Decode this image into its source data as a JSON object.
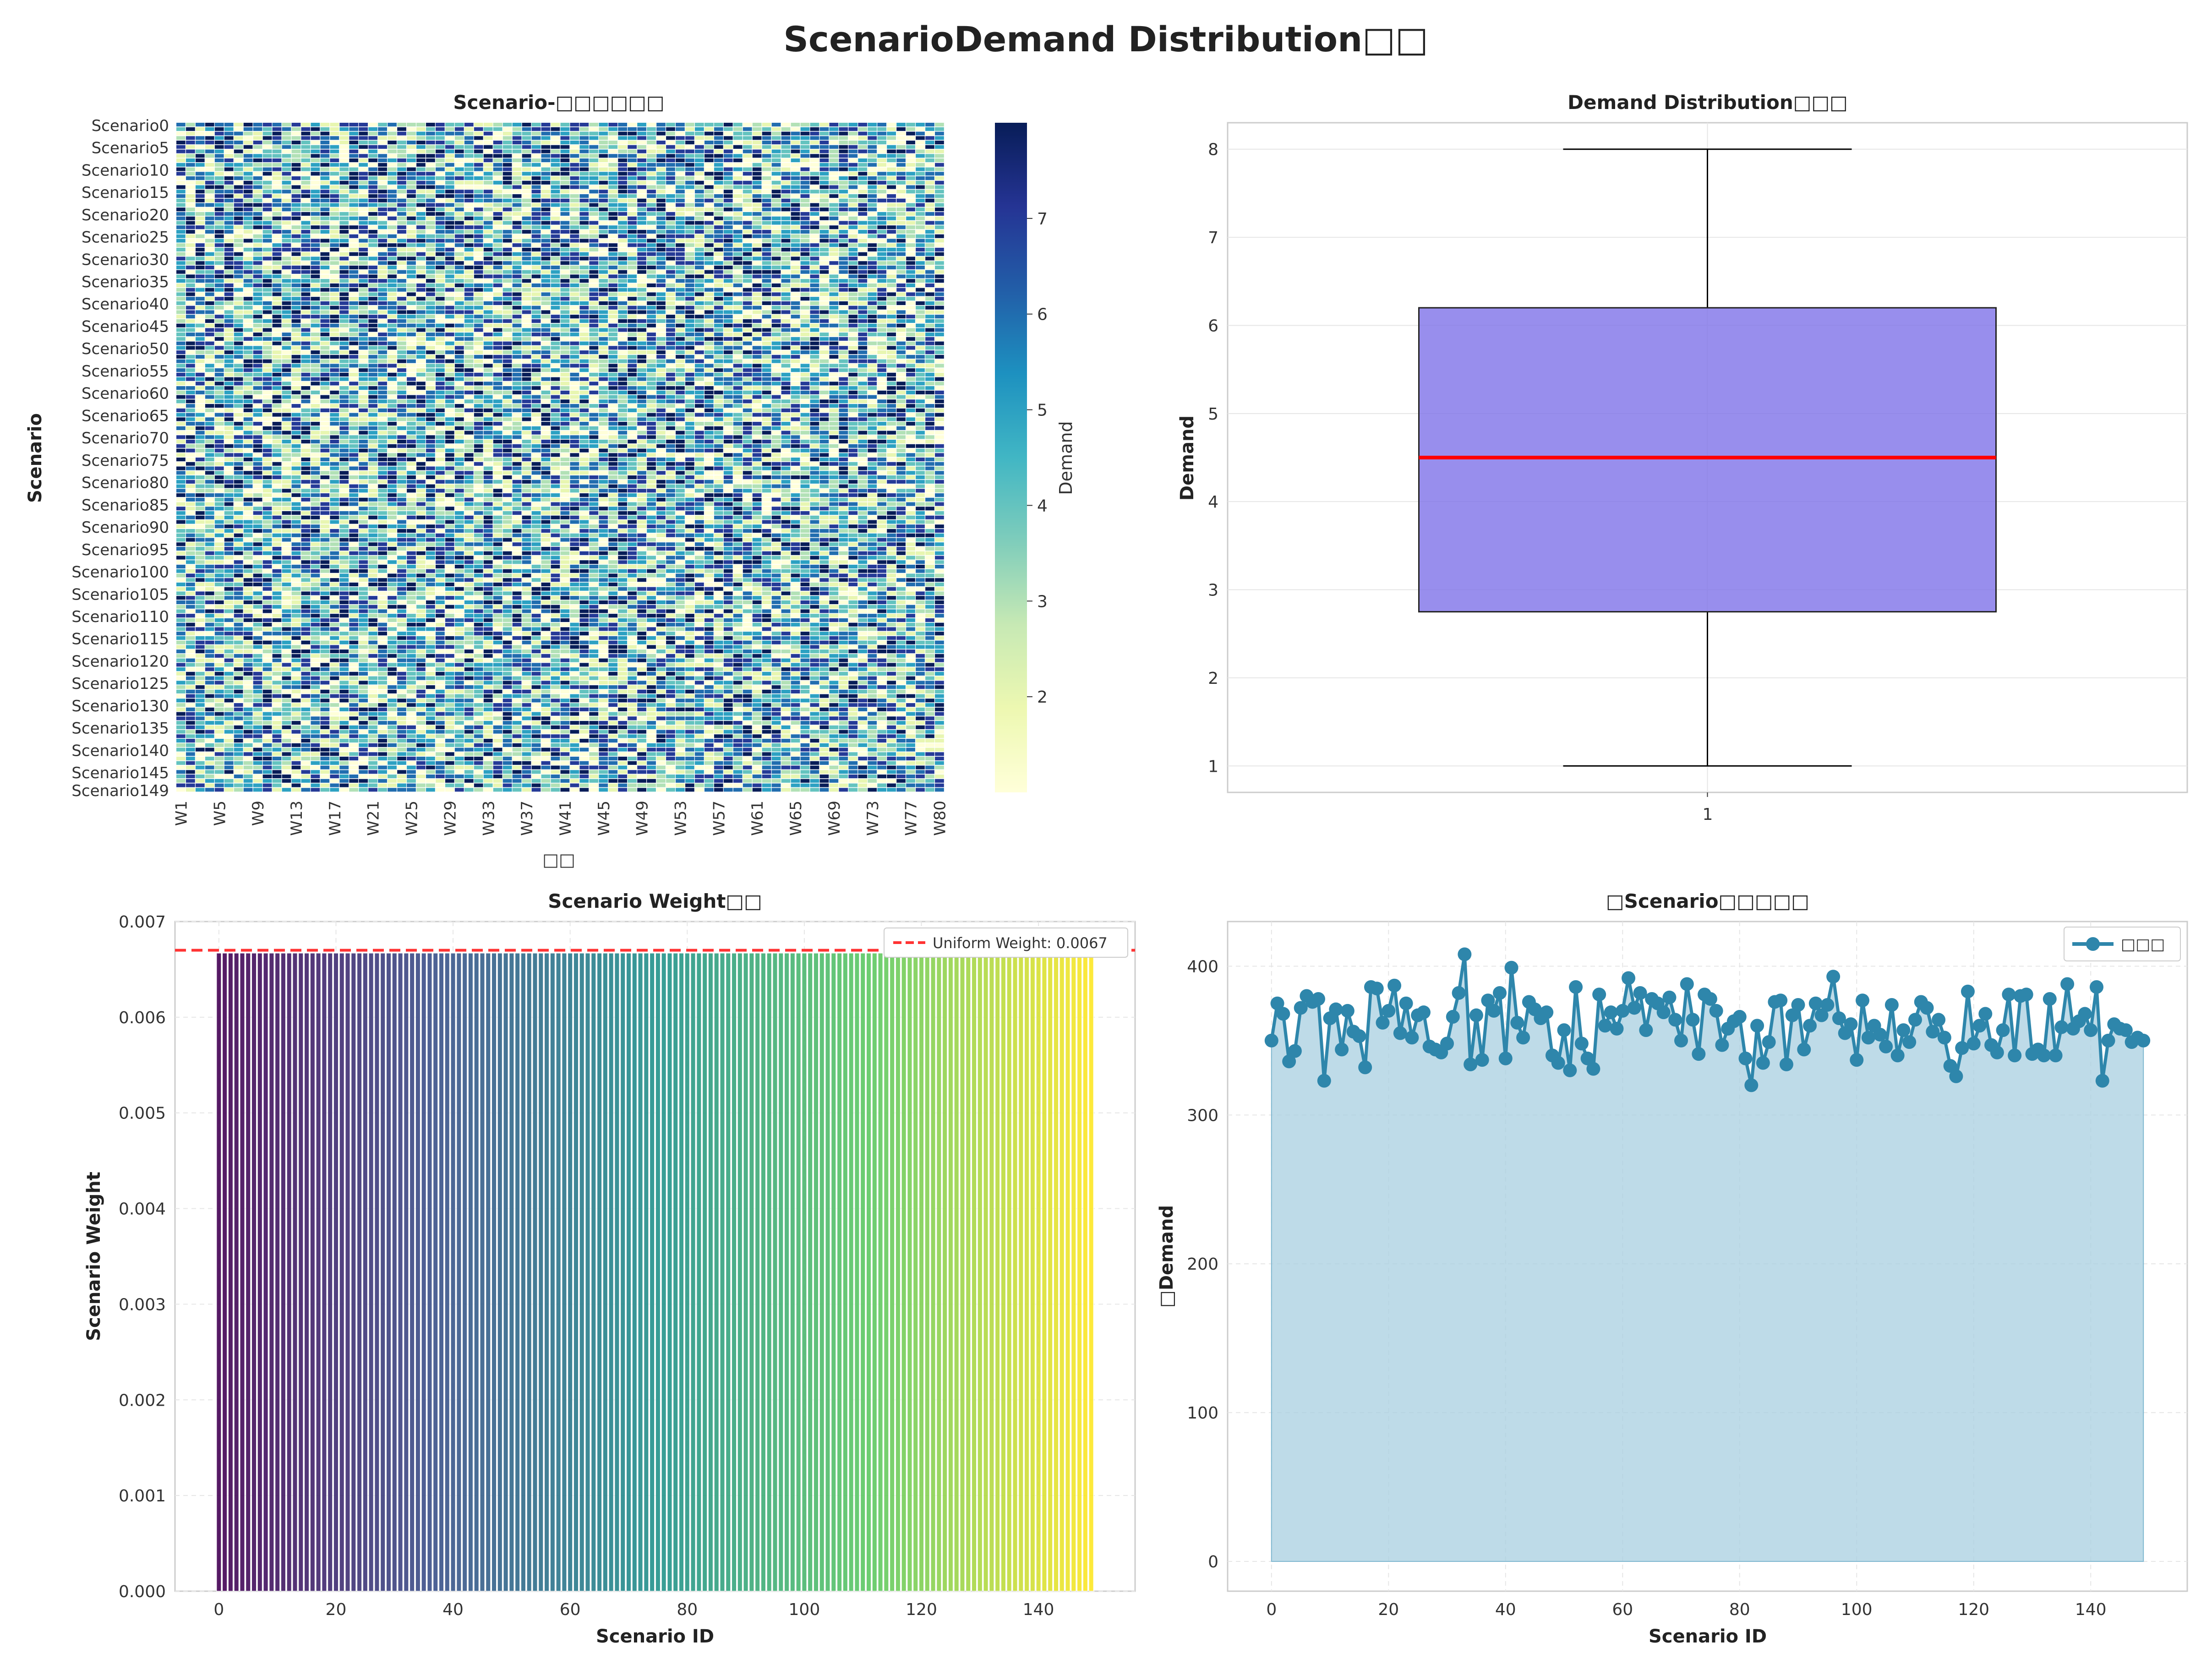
{
  "suptitle": "ScenarioDemand Distribution□□",
  "colors": {
    "box_fill": "#7b6ee8",
    "median": "#ff0000",
    "uniform_line": "#ff3333",
    "line": "#2e86ab",
    "area": "#a8cfe0",
    "grid": "#e6e6e6",
    "axis": "#cccccc"
  },
  "chart_data": [
    {
      "type": "heatmap",
      "title": "Scenario-□□□□□□",
      "xlabel": "□□",
      "ylabel": "Scenario",
      "rows": 150,
      "cols": 80,
      "x_tick_labels": [
        "W1",
        "W5",
        "W9",
        "W13",
        "W17",
        "W21",
        "W25",
        "W29",
        "W33",
        "W37",
        "W41",
        "W45",
        "W49",
        "W53",
        "W57",
        "W61",
        "W65",
        "W69",
        "W73",
        "W77",
        "W80"
      ],
      "y_tick_labels": [
        "Scenario0",
        "Scenario5",
        "Scenario10",
        "Scenario15",
        "Scenario20",
        "Scenario25",
        "Scenario30",
        "Scenario35",
        "Scenario40",
        "Scenario45",
        "Scenario50",
        "Scenario55",
        "Scenario60",
        "Scenario65",
        "Scenario70",
        "Scenario75",
        "Scenario80",
        "Scenario85",
        "Scenario90",
        "Scenario95",
        "Scenario100",
        "Scenario105",
        "Scenario110",
        "Scenario115",
        "Scenario120",
        "Scenario125",
        "Scenario130",
        "Scenario135",
        "Scenario140",
        "Scenario145",
        "Scenario149"
      ],
      "value_range": [
        1,
        8
      ],
      "colormap": "YlGnBu",
      "colorbar_label": "Demand",
      "colorbar_ticks": [
        2,
        3,
        4,
        5,
        6,
        7
      ],
      "values_note": "integer demand 1-8 per scenario-week"
    },
    {
      "type": "box",
      "title": "Demand Distribution□□□",
      "ylabel": "Demand",
      "x_tick_labels": [
        "1"
      ],
      "ylim": [
        0.7,
        8.3
      ],
      "y_ticks": [
        1,
        2,
        3,
        4,
        5,
        6,
        7,
        8
      ],
      "whisker_low": 1,
      "q1": 2.75,
      "median": 4.5,
      "q3": 6.2,
      "whisker_high": 8
    },
    {
      "type": "bar",
      "title": "Scenario Weight□□",
      "xlabel": "Scenario ID",
      "ylabel": "Scenario Weight",
      "count": 150,
      "value": 0.00667,
      "xlim": [
        -7.5,
        156.5
      ],
      "ylim": [
        0,
        0.007
      ],
      "x_ticks": [
        0,
        20,
        40,
        60,
        80,
        100,
        120,
        140
      ],
      "y_ticks": [
        "0.000",
        "0.001",
        "0.002",
        "0.003",
        "0.004",
        "0.005",
        "0.006",
        "0.007"
      ],
      "colormap": "viridis",
      "reference_line": 0.0067,
      "legend": "Uniform Weight: 0.0067",
      "legend_position": "top-right"
    },
    {
      "type": "area",
      "title": "□Scenario□□□□□",
      "xlabel": "Scenario ID",
      "ylabel": "□Demand",
      "xlim": [
        -7.5,
        156.5
      ],
      "ylim": [
        -20,
        430
      ],
      "x_ticks": [
        0,
        20,
        40,
        60,
        80,
        100,
        120,
        140
      ],
      "y_ticks": [
        0,
        100,
        200,
        300,
        400
      ],
      "legend": "□□□",
      "legend_position": "top-right",
      "values": [
        350,
        375,
        368,
        336,
        343,
        372,
        380,
        376,
        378,
        323,
        365,
        371,
        344,
        370,
        356,
        353,
        332,
        386,
        385,
        362,
        370,
        387,
        355,
        375,
        352,
        367,
        369,
        346,
        344,
        342,
        348,
        366,
        382,
        408,
        334,
        367,
        337,
        377,
        370,
        382,
        338,
        399,
        362,
        352,
        376,
        371,
        365,
        369,
        340,
        335,
        357,
        330,
        386,
        348,
        338,
        331,
        381,
        360,
        369,
        358,
        370,
        392,
        372,
        382,
        357,
        378,
        375,
        369,
        379,
        364,
        350,
        388,
        364,
        341,
        381,
        378,
        370,
        347,
        358,
        363,
        366,
        338,
        320,
        360,
        335,
        349,
        376,
        377,
        334,
        367,
        374,
        344,
        360,
        375,
        367,
        374,
        393,
        365,
        355,
        361,
        337,
        377,
        352,
        360,
        354,
        346,
        374,
        340,
        357,
        349,
        364,
        376,
        372,
        356,
        364,
        352,
        333,
        326,
        345,
        383,
        348,
        360,
        368,
        347,
        342,
        357,
        381,
        340,
        380,
        381,
        341,
        344,
        340,
        378,
        340,
        359,
        388,
        358,
        363,
        368,
        357,
        386,
        323,
        350,
        361,
        358,
        357,
        349,
        352,
        350
      ]
    }
  ]
}
